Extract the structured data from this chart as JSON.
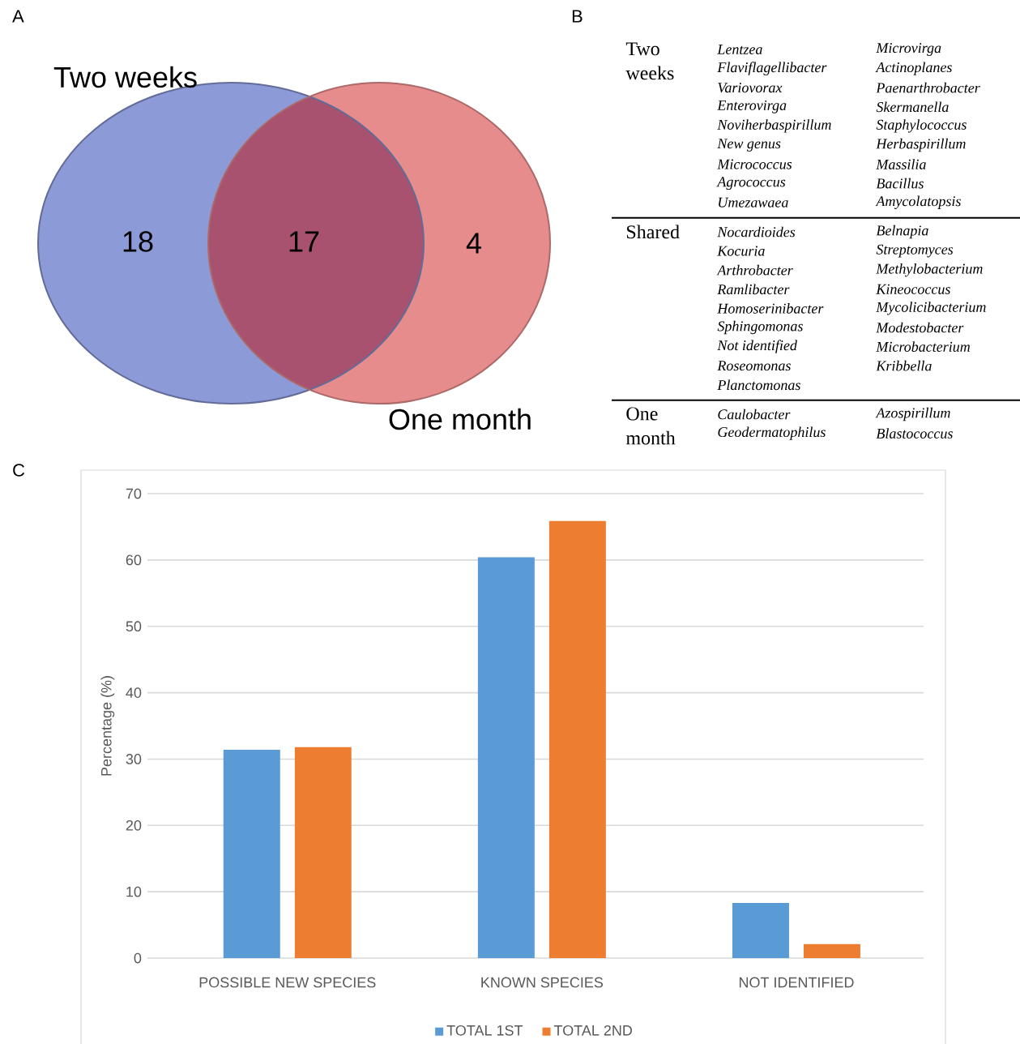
{
  "chart_data": [
    {
      "type": "other",
      "title": "A",
      "categories": [
        "Two weeks",
        null,
        "One month"
      ],
      "values": [
        18,
        17,
        4
      ],
      "colors": [
        "#8c9bd8",
        "#a8526f",
        "#e68c8c"
      ],
      "data_labels": true
    },
    {
      "type": "other",
      "title": "B",
      "categories": [
        "Two weeks",
        "Shared",
        "One month"
      ],
      "annotations": [
        "Lentzea",
        "Flaviflagellibacter",
        "Variovorax",
        "Enterovirga",
        "Noviherbaspirillum",
        "New genus",
        "Micrococcus",
        "Agrococcus",
        "Umezawaea",
        "Microvirga",
        "Actinoplanes",
        "Paenarthrobacter",
        "Skermanella",
        "Staphylococcus",
        "Herbaspirillum",
        "Massilia",
        "Bacillus",
        "Amycolatopsis",
        "Nocardioides",
        "Kocuria",
        "Arthrobacter",
        "Ramlibacter",
        "Homoserinibacter",
        "Sphingomonas",
        "Not identified",
        "Roseomonas",
        "Planctomonas",
        "Belnapia",
        "Streptomyces",
        "Methylobacterium",
        "Kineococcus",
        "Mycolicibacterium",
        "Modestobacter",
        "Microbacterium",
        "Kribbella",
        "Caulobacter",
        "Geodermatophilus",
        "Azospirillum",
        "Blastococcus"
      ]
    },
    {
      "type": "bar",
      "title": "C",
      "ylabel": "Percentage (%)",
      "categories": [
        "POSSIBLE NEW SPECIES",
        "KNOWN SPECIES",
        "NOT IDENTIFIED"
      ],
      "series": [
        {
          "name": "TOTAL 1ST",
          "color": "#5b9bd5",
          "values": [
            31.4,
            60.4,
            8.3
          ]
        },
        {
          "name": "TOTAL 2ND",
          "color": "#ed7d31",
          "values": [
            31.8,
            65.9,
            2.1
          ]
        }
      ],
      "ylim": [
        0,
        70
      ],
      "yticks": [
        0,
        10,
        20,
        30,
        40,
        50,
        60,
        70
      ],
      "grid": "y",
      "legend": "bottom"
    }
  ]
}
